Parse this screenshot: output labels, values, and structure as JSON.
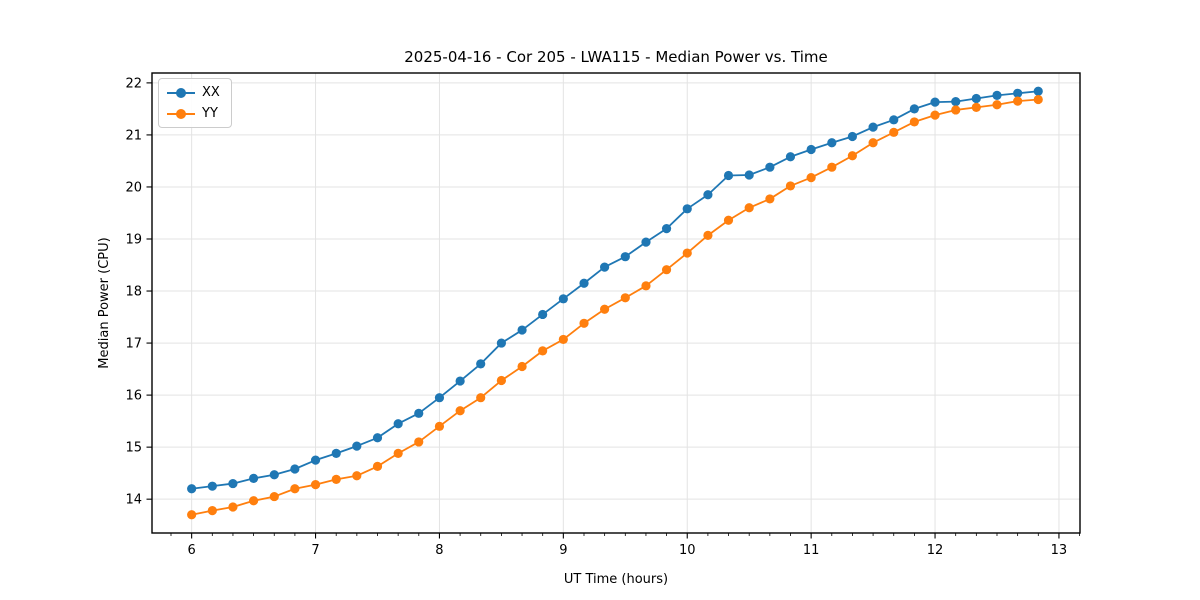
{
  "chart_data": {
    "type": "line",
    "title": "2025-04-16 - Cor 205 - LWA115 - Median Power vs. Time",
    "xlabel": "UT Time (hours)",
    "ylabel": "Median Power (CPU)",
    "xlim": [
      5.68,
      13.17
    ],
    "ylim": [
      13.35,
      22.19
    ],
    "xticks": [
      6,
      7,
      8,
      9,
      10,
      11,
      12,
      13
    ],
    "yticks": [
      14,
      15,
      16,
      17,
      18,
      19,
      20,
      21,
      22
    ],
    "x_minor_step": 0.166667,
    "grid": true,
    "legend_position": "upper-left",
    "x": [
      6.0,
      6.167,
      6.333,
      6.5,
      6.667,
      6.833,
      7.0,
      7.167,
      7.333,
      7.5,
      7.667,
      7.833,
      8.0,
      8.167,
      8.333,
      8.5,
      8.667,
      8.833,
      9.0,
      9.167,
      9.333,
      9.5,
      9.667,
      9.833,
      10.0,
      10.167,
      10.333,
      10.5,
      10.667,
      10.833,
      11.0,
      11.167,
      11.333,
      11.5,
      11.667,
      11.833,
      12.0,
      12.167,
      12.333,
      12.5,
      12.667,
      12.833
    ],
    "series": [
      {
        "name": "XX",
        "color": "#1f77b4",
        "values": [
          14.2,
          14.25,
          14.3,
          14.4,
          14.47,
          14.58,
          14.75,
          14.88,
          15.02,
          15.18,
          15.45,
          15.65,
          15.95,
          16.27,
          16.6,
          17.0,
          17.25,
          17.55,
          17.85,
          18.15,
          18.46,
          18.66,
          18.94,
          19.2,
          19.58,
          19.85,
          20.22,
          20.23,
          20.38,
          20.58,
          20.72,
          20.85,
          20.97,
          21.15,
          21.29,
          21.5,
          21.63,
          21.64,
          21.7,
          21.76,
          21.8,
          21.84
        ]
      },
      {
        "name": "YY",
        "color": "#ff7f0e",
        "values": [
          13.7,
          13.78,
          13.85,
          13.97,
          14.05,
          14.2,
          14.28,
          14.38,
          14.45,
          14.63,
          14.88,
          15.1,
          15.4,
          15.7,
          15.95,
          16.28,
          16.55,
          16.85,
          17.07,
          17.38,
          17.65,
          17.87,
          18.1,
          18.41,
          18.73,
          19.07,
          19.36,
          19.6,
          19.77,
          20.02,
          20.18,
          20.38,
          20.6,
          20.85,
          21.05,
          21.25,
          21.38,
          21.48,
          21.53,
          21.58,
          21.65,
          21.68
        ]
      }
    ]
  },
  "style_colors": {
    "spine": "#000000",
    "grid": "#e3e3e3",
    "tick": "#000000",
    "background": "#ffffff",
    "legend_border": "#cccccc"
  }
}
